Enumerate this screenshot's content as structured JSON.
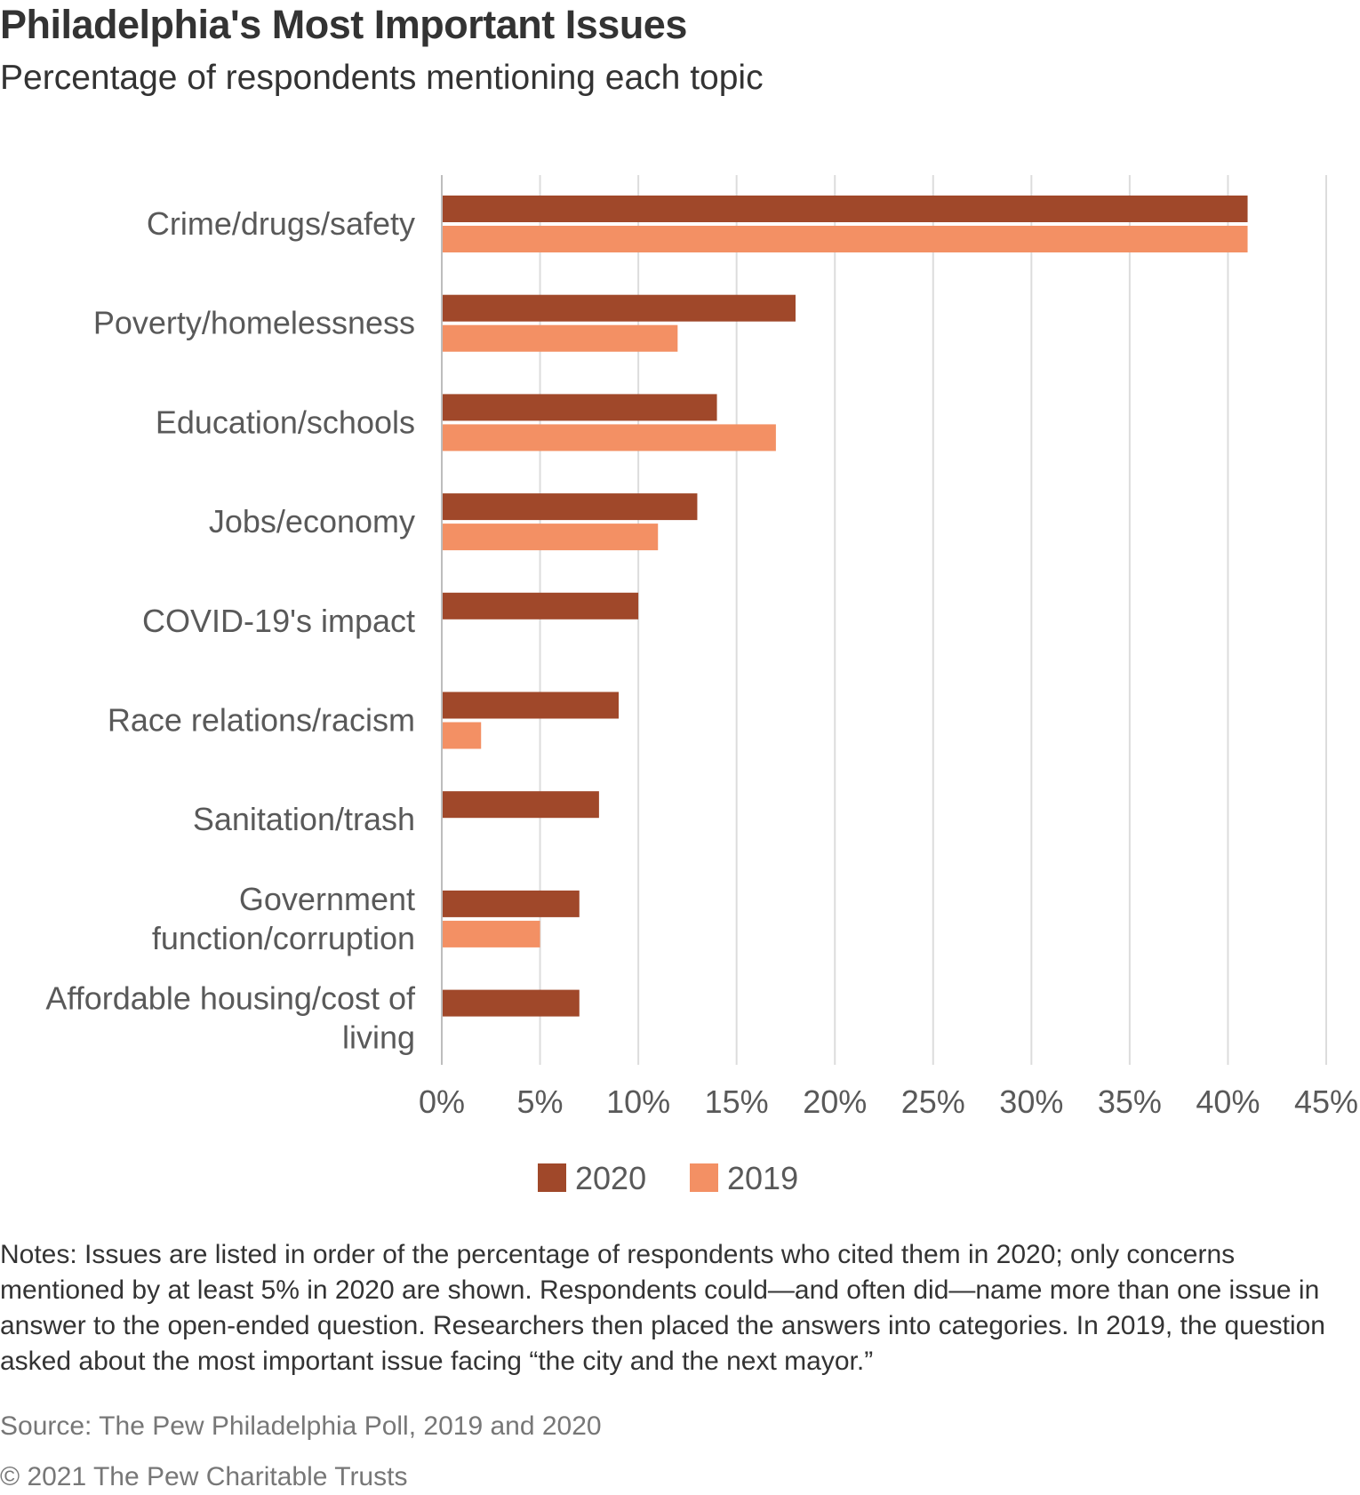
{
  "chart_data": {
    "type": "bar",
    "orientation": "horizontal",
    "title": "Philadelphia's Most Important Issues",
    "subtitle": "Percentage of respondents mentioning each topic",
    "categories": [
      [
        "Crime/drugs/safety"
      ],
      [
        "Poverty/homelessness"
      ],
      [
        "Education/schools"
      ],
      [
        "Jobs/economy"
      ],
      [
        "COVID-19's impact"
      ],
      [
        "Race relations/racism"
      ],
      [
        "Sanitation/trash"
      ],
      [
        "Government",
        "function/corruption"
      ],
      [
        "Affordable housing/cost of",
        "living"
      ]
    ],
    "series": [
      {
        "name": "2020",
        "color": "#A0482A",
        "values": [
          41,
          18,
          14,
          13,
          10,
          9,
          8,
          7,
          7
        ]
      },
      {
        "name": "2019",
        "color": "#F39064",
        "values": [
          41,
          12,
          17,
          11,
          null,
          2,
          null,
          5,
          null
        ]
      }
    ],
    "xlim": [
      0,
      45
    ],
    "xticks": [
      0,
      5,
      10,
      15,
      20,
      25,
      30,
      35,
      40,
      45
    ],
    "xtick_labels": [
      "0%",
      "5%",
      "10%",
      "15%",
      "20%",
      "25%",
      "30%",
      "35%",
      "40%",
      "45%"
    ],
    "grid": true,
    "legend_position": "bottom-center",
    "xlabel": "",
    "ylabel": ""
  },
  "notes": "Notes: Issues are listed in order of the percentage of respondents who cited them in 2020; only concerns mentioned by at least 5% in 2020 are shown. Respondents could—and often did—name more than one issue in answer to the open-ended question. Researchers then placed the answers into categories. In 2019, the question asked about the most important issue facing “the city and the next mayor.”",
  "source": "Source: The Pew Philadelphia Poll, 2019 and 2020",
  "copyright": "© 2021 The Pew Charitable Trusts"
}
